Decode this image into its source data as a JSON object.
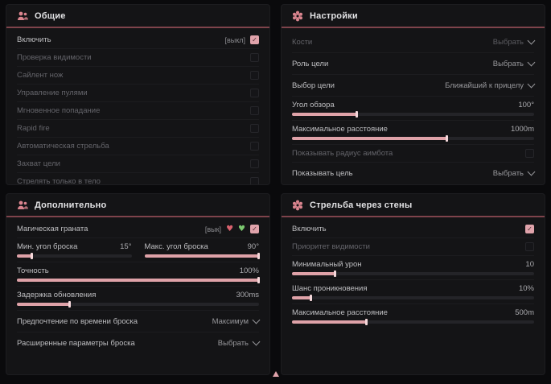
{
  "colors": {
    "accent_pink": "#dfa2a8",
    "divider_maroon": "#7e434b",
    "panel_bg": "#141416",
    "page_bg": "#0a0a0c",
    "text": "#bfbfc2",
    "dim_text": "#64646a",
    "heart_red": "#d9626e",
    "heart_green": "#7bc96f"
  },
  "panels": {
    "general": {
      "title": "Общие",
      "icon": "people-icon",
      "rows": [
        {
          "label": "Включить",
          "suffix": "[выкл]",
          "checked": true
        },
        {
          "label": "Проверка видимости",
          "checked": false
        },
        {
          "label": "Сайлент нож",
          "checked": false
        },
        {
          "label": "Управление пулями",
          "checked": false
        },
        {
          "label": "Мгновенное попадание",
          "checked": false
        },
        {
          "label": "Rapid fire",
          "checked": false
        },
        {
          "label": "Автоматическая стрельба",
          "checked": false
        },
        {
          "label": "Захват цели",
          "checked": false
        },
        {
          "label": "Стрелять только в тело",
          "checked": false
        }
      ]
    },
    "settings": {
      "title": "Настройки",
      "icon": "gear-icon",
      "bones": {
        "label": "Кости",
        "value": "Выбрать"
      },
      "target_role": {
        "label": "Роль цели",
        "value": "Выбрать"
      },
      "target_select": {
        "label": "Выбор цели",
        "value": "Ближайший к прицелу"
      },
      "fov": {
        "label": "Угол обзора",
        "value": "100°",
        "pct": 27
      },
      "max_distance": {
        "label": "Максимальное расстояние",
        "value": "1000m",
        "pct": 64
      },
      "show_radius": {
        "label": "Показывать радиус аимбота",
        "checked": false
      },
      "show_target": {
        "label": "Показывать цель",
        "value": "Выбрать"
      }
    },
    "additional": {
      "title": "Дополнительно",
      "icon": "people-icon",
      "magic_grenade": {
        "label": "Магическая граната",
        "suffix": "[вык]",
        "checked": true,
        "icons": [
          "heart-crossed-icon",
          "heart-check-icon"
        ]
      },
      "min_angle": {
        "label": "Мин. угол броска",
        "value": "15°",
        "pct": 13
      },
      "max_angle": {
        "label": "Макс. угол броска",
        "value": "90°",
        "pct": 100
      },
      "accuracy": {
        "label": "Точность",
        "value": "100%",
        "pct": 100
      },
      "update_delay": {
        "label": "Задержка обновления",
        "value": "300ms",
        "pct": 22
      },
      "throw_time_pref": {
        "label": "Предпочтение по времени броска",
        "value": "Максимум"
      },
      "advanced_throw": {
        "label": "Расширенные параметры броска",
        "value": "Выбрать"
      }
    },
    "walls": {
      "title": "Стрельба через стены",
      "icon": "gear-icon",
      "enable": {
        "label": "Включить",
        "checked": true
      },
      "visibility_priority": {
        "label": "Приоритет видимости",
        "checked": false
      },
      "min_damage": {
        "label": "Минимальный урон",
        "value": "10",
        "pct": 18
      },
      "penetration_chance": {
        "label": "Шанс проникновения",
        "value": "10%",
        "pct": 8
      },
      "max_distance": {
        "label": "Максимальное расстояние",
        "value": "500m",
        "pct": 31
      }
    }
  }
}
